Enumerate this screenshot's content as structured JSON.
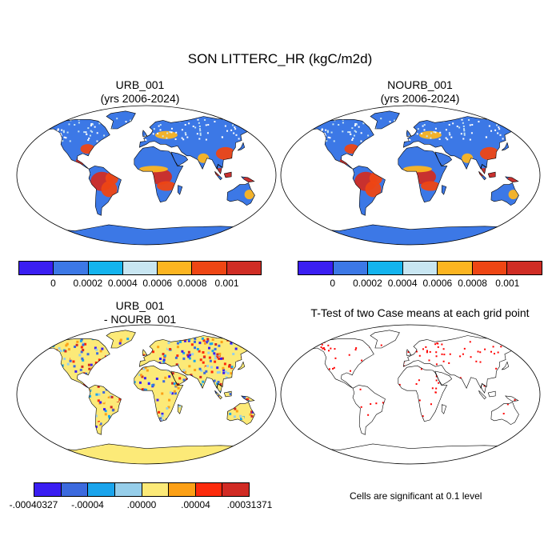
{
  "title": "SON LITTERC_HR (kgC/m2d)",
  "panels": {
    "urb": {
      "title": "URB_001",
      "years": "(yrs 2006-2024)"
    },
    "nourb": {
      "title": "NOURB_001",
      "years": "(yrs 2006-2024)"
    },
    "diff": {
      "title": "URB_001",
      "subtitle": "- NOURB_001"
    },
    "ttest": {
      "title": "T-Test of two Case means at each grid point",
      "note": "Cells are significant at 0.1 level"
    }
  },
  "colorbars": {
    "abs": {
      "colors": [
        "#3a1ef2",
        "#3c78e6",
        "#14b4ee",
        "#c8e6f2",
        "#fcb521",
        "#ee4614",
        "#d02d25"
      ],
      "labels": [
        "0",
        "0.0002",
        "0.0004",
        "0.0006",
        "0.0008",
        "0.001"
      ]
    },
    "diff": {
      "colors": [
        "#3a1ef2",
        "#3c6ade",
        "#1aa4ec",
        "#96ceea",
        "#fcea78",
        "#fca016",
        "#fc2b0c",
        "#d12b24"
      ],
      "labels": [
        "-.00040327",
        "-.00004",
        ".00000",
        ".00004",
        ".00031371"
      ]
    }
  },
  "map_colors": {
    "ocean": "#ffffff",
    "land_low": "#3c78e6",
    "land_mid": "#fcb521",
    "land_high": "#ee4614",
    "land_peak": "#d02d25",
    "diff_neutral": "#fcea78",
    "significant": "#ff0000"
  }
}
